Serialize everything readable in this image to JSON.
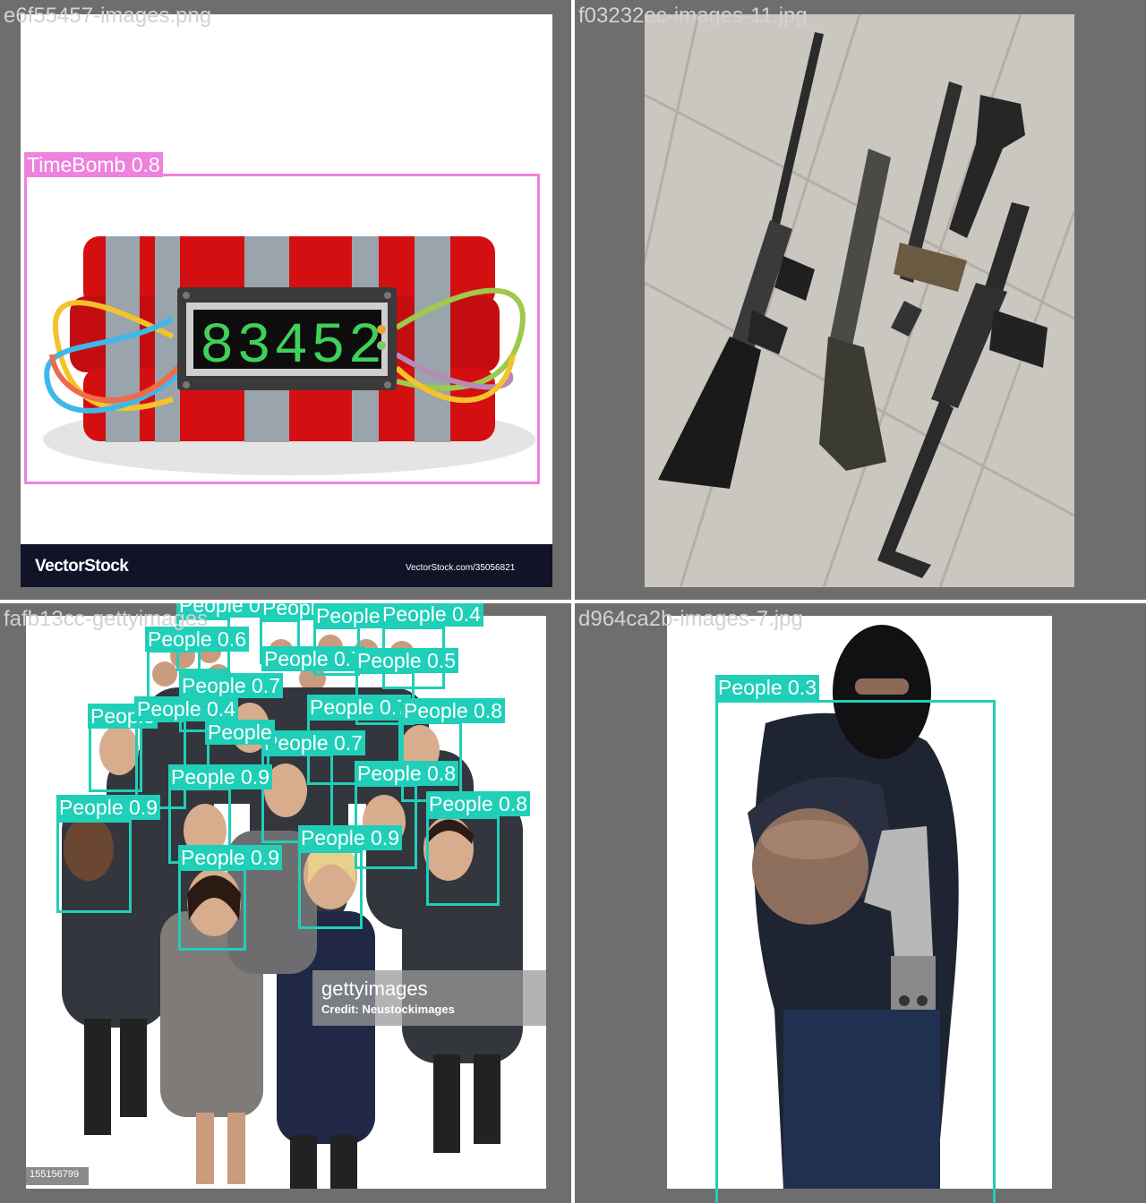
{
  "colors": {
    "timebomb": "#ee82dd",
    "people": "#1fcfb8",
    "cell_bg": "#6e6e6e"
  },
  "panels": [
    {
      "filename": "e6f55457-images.png",
      "watermark_left": "VectorStock",
      "watermark_right": "VectorStock.com/35056821",
      "timer_display": "83452",
      "detections": [
        {
          "label": "TimeBomb 0.8"
        }
      ]
    },
    {
      "filename": "f03232ec-images-11.jpg",
      "detections": []
    },
    {
      "filename": "fafb13cc-gettyimages",
      "watermark": "gettyimages",
      "credit": "Credit: Neustockimages",
      "image_id": "155156799",
      "detections": [
        {
          "label": "People 0.6"
        },
        {
          "label": "People 0.7"
        },
        {
          "label": "People"
        },
        {
          "label": "People 0.4"
        },
        {
          "label": "People 0.6"
        },
        {
          "label": "People 0.7"
        },
        {
          "label": "People 0.5"
        },
        {
          "label": "People 0.7"
        },
        {
          "label": "People"
        },
        {
          "label": "People 0.4"
        },
        {
          "label": "People 0.7"
        },
        {
          "label": "People 0.8"
        },
        {
          "label": "People 0.9"
        },
        {
          "label": "People 0.7"
        },
        {
          "label": "People 0.8"
        },
        {
          "label": "People 0.9"
        },
        {
          "label": "People 0.8"
        },
        {
          "label": "People 0.9"
        },
        {
          "label": "People 0.9"
        },
        {
          "label": "People"
        }
      ]
    },
    {
      "filename": "d964ca2b-images-7.jpg",
      "detections": [
        {
          "label": "People 0.3"
        }
      ]
    }
  ]
}
